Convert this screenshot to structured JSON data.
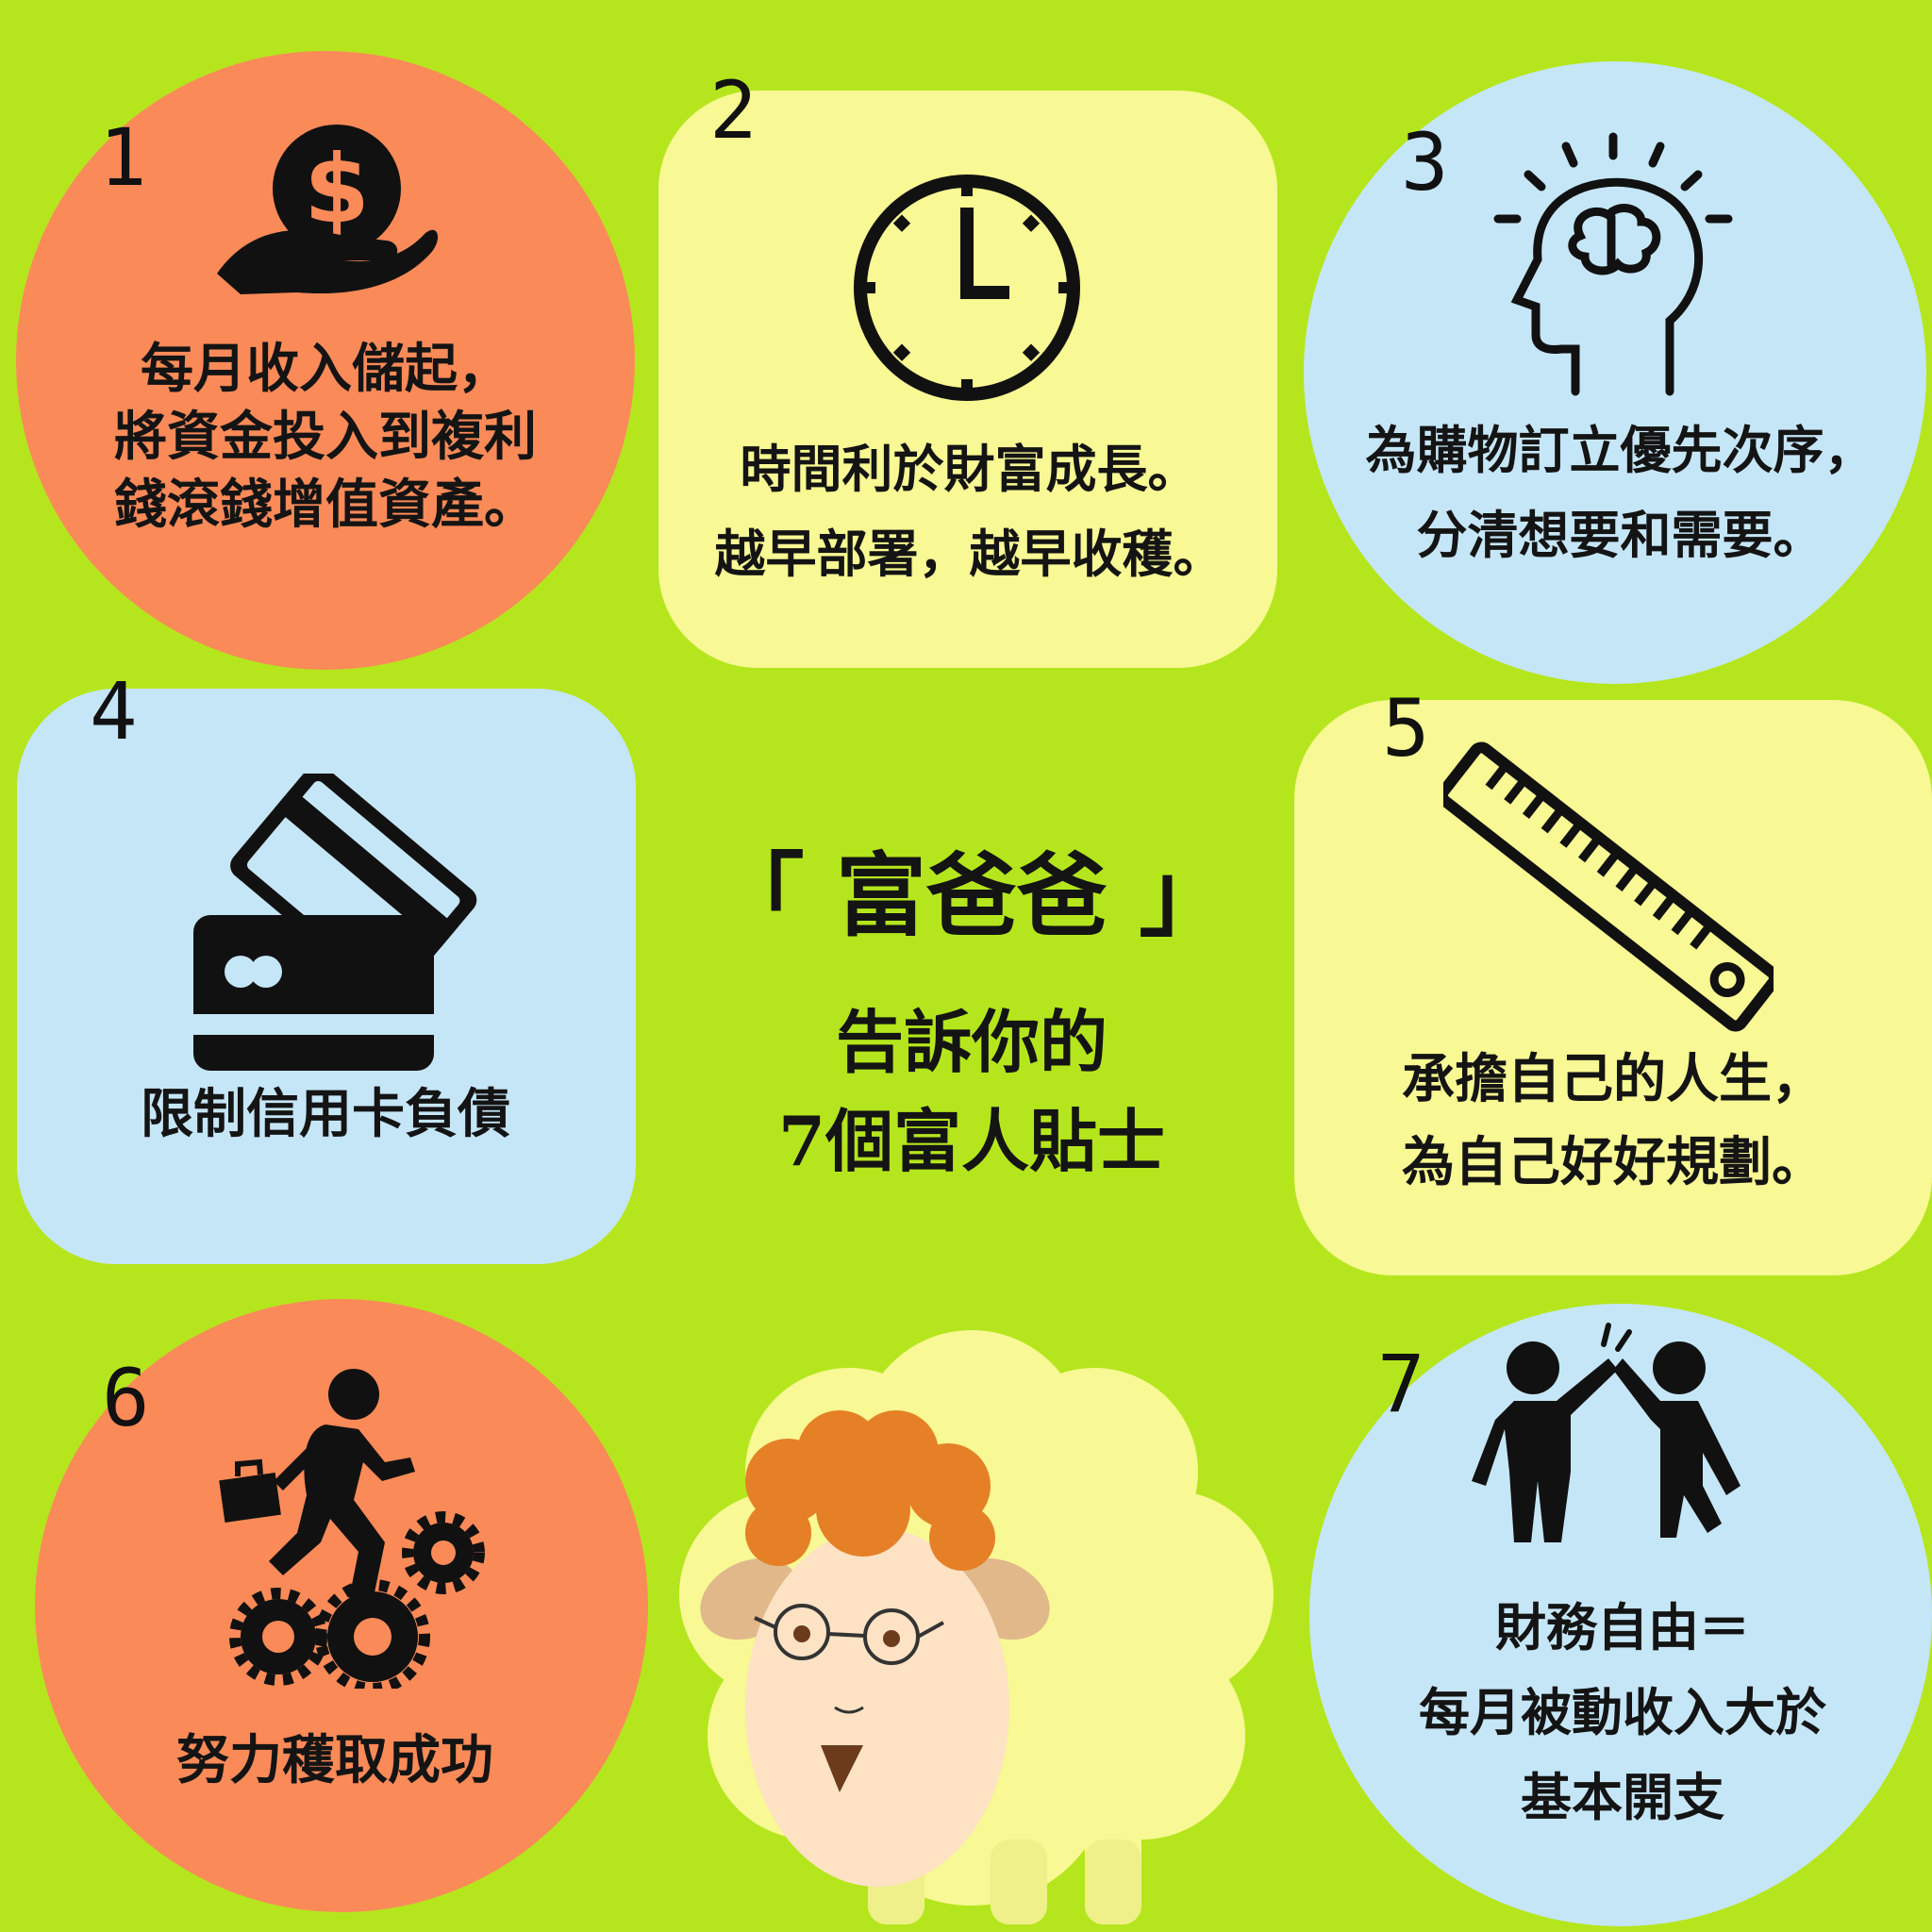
{
  "colors": {
    "background": "#b5e61d",
    "orange": "#fa8a58",
    "yellow": "#f8f894",
    "blue": "#c5e6f7",
    "text": "#141414"
  },
  "center": {
    "title": "「 富爸爸 」",
    "subtitle_line1": "告訴你的",
    "subtitle_line2": "7個富人貼士"
  },
  "tips": [
    {
      "number": "1",
      "icon": "money-in-hand-icon",
      "lines": [
        "每月收入儲起，",
        "將資金投入到複利",
        "錢滾錢增值資產。"
      ]
    },
    {
      "number": "2",
      "icon": "clock-icon",
      "lines": [
        "時間利於財富成長。",
        "越早部署，越早收穫。"
      ]
    },
    {
      "number": "3",
      "icon": "brain-head-icon",
      "lines": [
        "為購物訂立優先次序，",
        "分清想要和需要。"
      ]
    },
    {
      "number": "4",
      "icon": "credit-cards-icon",
      "lines": [
        "限制信用卡負債"
      ]
    },
    {
      "number": "5",
      "icon": "ruler-icon",
      "lines": [
        "承擔自己的人生，",
        "為自己好好規劃。"
      ]
    },
    {
      "number": "6",
      "icon": "businessman-gears-icon",
      "lines": [
        "努力穫取成功"
      ]
    },
    {
      "number": "7",
      "icon": "high-five-icon",
      "lines": [
        "財務自由＝",
        "每月被動收入大於",
        "基本開支"
      ]
    }
  ],
  "mascot": {
    "icon": "sheep-icon"
  }
}
